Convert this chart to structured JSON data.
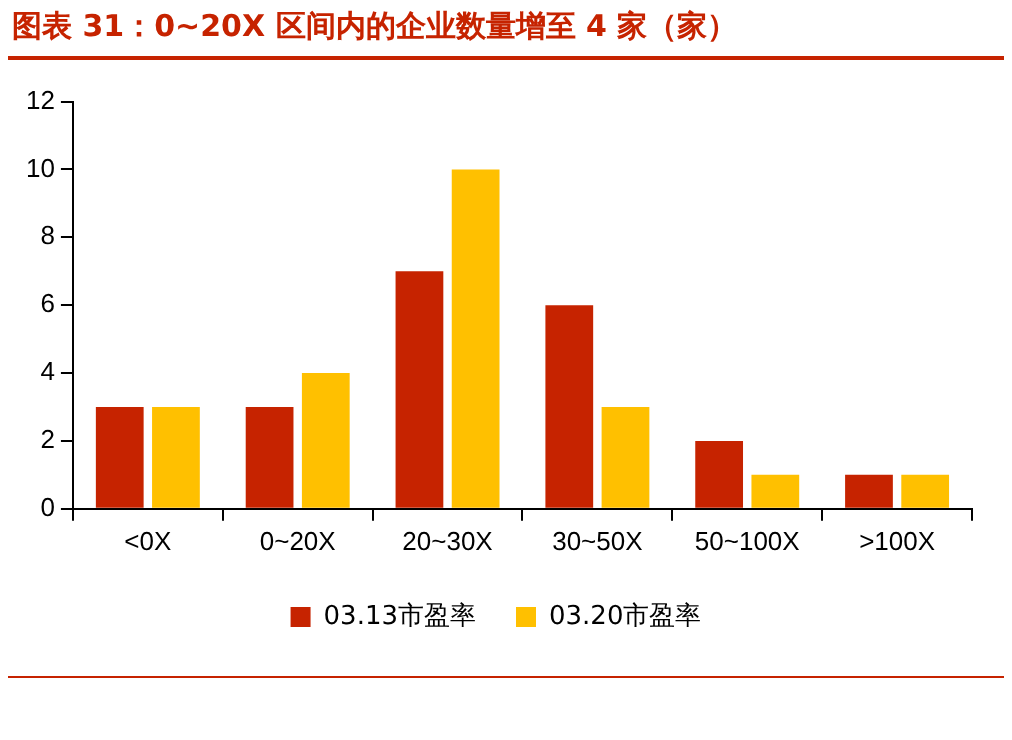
{
  "chart_data": {
    "type": "bar",
    "title": "图表 31：0~20X 区间内的企业数量增至 4 家（家）",
    "categories": [
      "<0X",
      "0~20X",
      "20~30X",
      "30~50X",
      "50~100X",
      ">100X"
    ],
    "series": [
      {
        "name": "03.13市盈率",
        "color": "#c62300",
        "values": [
          3,
          3,
          7,
          6,
          2,
          1
        ]
      },
      {
        "name": "03.20市盈率",
        "color": "#ffc000",
        "values": [
          3,
          4,
          10,
          3,
          1,
          1
        ]
      }
    ],
    "ylim": [
      0,
      12
    ],
    "yticks": [
      0,
      2,
      4,
      6,
      8,
      10,
      12
    ],
    "grid": false,
    "legend": "bottom"
  }
}
